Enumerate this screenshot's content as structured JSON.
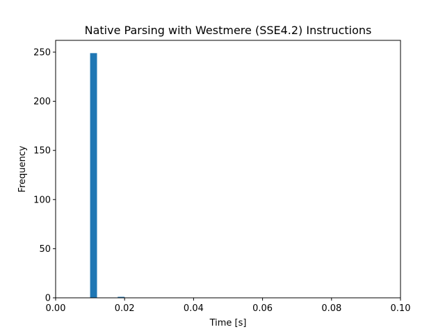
{
  "chart_data": {
    "type": "bar",
    "title": "Native Parsing with Westmere (SSE4.2) Instructions",
    "xlabel": "Time [s]",
    "ylabel": "Frequency",
    "xlim": [
      0.0,
      0.1
    ],
    "ylim": [
      0,
      262
    ],
    "xticks": [
      "0.00",
      "0.02",
      "0.04",
      "0.06",
      "0.08",
      "0.10"
    ],
    "yticks": [
      "0",
      "50",
      "100",
      "150",
      "200",
      "250"
    ],
    "bin_width": 0.002,
    "bins": [
      {
        "x0": 0.01,
        "x1": 0.012,
        "count": 249
      },
      {
        "x0": 0.018,
        "x1": 0.02,
        "count": 1
      }
    ],
    "bar_color": "#1f77b4",
    "grid": false
  }
}
